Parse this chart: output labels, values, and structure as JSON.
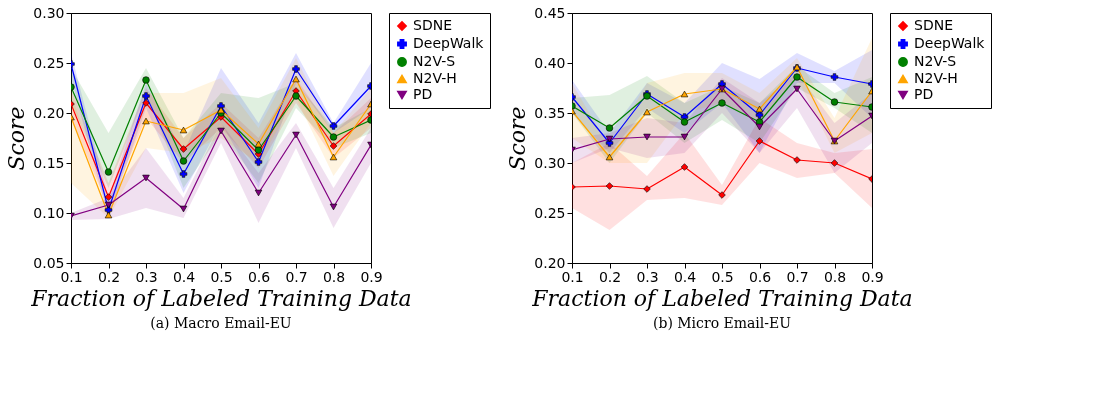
{
  "chart_data": [
    {
      "type": "line",
      "xlabel": "Fraction of Labeled Training Data",
      "ylabel": "Score",
      "annotations": [
        "(a) Macro Email-EU"
      ],
      "x": [
        0.1,
        0.2,
        0.3,
        0.4,
        0.5,
        0.6,
        0.7,
        0.8,
        0.9
      ],
      "xlim": [
        0.1,
        0.9
      ],
      "xticks": [
        0.1,
        0.2,
        0.3,
        0.4,
        0.5,
        0.6,
        0.7,
        0.8,
        0.9
      ],
      "ylim": [
        0.05,
        0.3
      ],
      "yticks": [
        0.05,
        {
          "value": 0.1,
          "label": "0.10"
        },
        0.15,
        {
          "value": 0.2,
          "label": "0.20"
        },
        0.25,
        {
          "value": 0.3,
          "label": "0.30"
        }
      ],
      "grid": false,
      "legend": "right",
      "line_style": "solid",
      "series": [
        {
          "name": "SDNE",
          "color": "#ff0000",
          "marker": "diamond",
          "values": [
            0.209,
            0.116,
            0.21,
            0.164,
            0.196,
            0.159,
            0.222,
            0.167,
            0.199
          ],
          "lower": [
            0.195,
            0.105,
            0.195,
            0.15,
            0.185,
            0.145,
            0.21,
            0.155,
            0.185
          ],
          "upper": [
            0.225,
            0.13,
            0.225,
            0.175,
            0.21,
            0.175,
            0.235,
            0.18,
            0.215
          ]
        },
        {
          "name": "DeepWalk",
          "color": "#0000ff",
          "marker": "cross",
          "values": [
            0.249,
            0.103,
            0.217,
            0.139,
            0.207,
            0.151,
            0.244,
            0.187,
            0.227
          ],
          "lower": [
            0.235,
            0.095,
            0.205,
            0.12,
            0.19,
            0.125,
            0.23,
            0.18,
            0.205
          ],
          "upper": [
            0.26,
            0.115,
            0.23,
            0.16,
            0.245,
            0.19,
            0.26,
            0.19,
            0.25
          ]
        },
        {
          "name": "N2V-S",
          "color": "#008000",
          "marker": "circle",
          "values": [
            0.226,
            0.141,
            0.233,
            0.152,
            0.2,
            0.163,
            0.217,
            0.176,
            0.193
          ],
          "lower": [
            0.21,
            0.125,
            0.22,
            0.125,
            0.18,
            0.13,
            0.205,
            0.165,
            0.18
          ],
          "upper": [
            0.245,
            0.18,
            0.245,
            0.175,
            0.22,
            0.215,
            0.23,
            0.185,
            0.205
          ]
        },
        {
          "name": "N2V-H",
          "color": "#ffa500",
          "marker": "triangle",
          "values": [
            0.196,
            0.098,
            0.192,
            0.183,
            0.203,
            0.169,
            0.234,
            0.156,
            0.209
          ],
          "lower": [
            0.13,
            0.095,
            0.165,
            0.16,
            0.175,
            0.15,
            0.215,
            0.137,
            0.19
          ],
          "upper": [
            0.22,
            0.105,
            0.22,
            0.22,
            0.235,
            0.185,
            0.255,
            0.18,
            0.225
          ]
        },
        {
          "name": "PD",
          "color": "#800080",
          "marker": "triangle-down",
          "values": [
            0.097,
            0.108,
            0.135,
            0.104,
            0.182,
            0.12,
            0.178,
            0.106,
            0.168
          ],
          "lower": [
            0.093,
            0.094,
            0.105,
            0.095,
            0.17,
            0.09,
            0.165,
            0.085,
            0.15
          ],
          "upper": [
            0.1,
            0.115,
            0.165,
            0.115,
            0.19,
            0.14,
            0.19,
            0.125,
            0.185
          ]
        }
      ]
    },
    {
      "type": "line",
      "xlabel": "Fraction of Labeled Training Data",
      "ylabel": "Score",
      "annotations": [
        "(b) Micro Email-EU"
      ],
      "x": [
        0.1,
        0.2,
        0.3,
        0.4,
        0.5,
        0.6,
        0.7,
        0.8,
        0.9
      ],
      "xlim": [
        0.1,
        0.9
      ],
      "xticks": [
        0.1,
        0.2,
        0.3,
        0.4,
        0.5,
        0.6,
        0.7,
        0.8,
        0.9
      ],
      "ylim": [
        0.2,
        0.45
      ],
      "yticks": [
        {
          "value": 0.2,
          "label": "0.20"
        },
        0.25,
        {
          "value": 0.3,
          "label": "0.30"
        },
        0.35,
        {
          "value": 0.4,
          "label": "0.40"
        },
        0.45
      ],
      "grid": false,
      "legend": "right",
      "line_style": "solid",
      "series": [
        {
          "name": "SDNE",
          "color": "#ff0000",
          "marker": "diamond",
          "values": [
            0.276,
            0.277,
            0.274,
            0.296,
            0.268,
            0.322,
            0.303,
            0.3,
            0.284
          ],
          "lower": [
            0.255,
            0.233,
            0.263,
            0.265,
            0.258,
            0.3,
            0.285,
            0.29,
            0.255
          ],
          "upper": [
            0.3,
            0.32,
            0.287,
            0.33,
            0.278,
            0.345,
            0.32,
            0.31,
            0.314
          ]
        },
        {
          "name": "DeepWalk",
          "color": "#0000ff",
          "marker": "cross",
          "values": [
            0.366,
            0.32,
            0.369,
            0.346,
            0.379,
            0.348,
            0.395,
            0.386,
            0.379
          ],
          "lower": [
            0.35,
            0.31,
            0.355,
            0.33,
            0.36,
            0.31,
            0.38,
            0.38,
            0.345
          ],
          "upper": [
            0.383,
            0.33,
            0.38,
            0.36,
            0.4,
            0.384,
            0.41,
            0.392,
            0.413
          ]
        },
        {
          "name": "N2V-S",
          "color": "#008000",
          "marker": "circle",
          "values": [
            0.357,
            0.335,
            0.367,
            0.341,
            0.36,
            0.341,
            0.386,
            0.361,
            0.356
          ],
          "lower": [
            0.35,
            0.3,
            0.35,
            0.32,
            0.343,
            0.32,
            0.375,
            0.355,
            0.33
          ],
          "upper": [
            0.365,
            0.368,
            0.387,
            0.36,
            0.377,
            0.36,
            0.397,
            0.37,
            0.386
          ]
        },
        {
          "name": "N2V-H",
          "color": "#ffa500",
          "marker": "triangle",
          "values": [
            0.352,
            0.306,
            0.351,
            0.369,
            0.374,
            0.354,
            0.396,
            0.322,
            0.372
          ],
          "lower": [
            0.325,
            0.3,
            0.3,
            0.35,
            0.36,
            0.34,
            0.385,
            0.31,
            0.33
          ],
          "upper": [
            0.38,
            0.315,
            0.38,
            0.39,
            0.39,
            0.37,
            0.405,
            0.345,
            0.425
          ]
        },
        {
          "name": "PD",
          "color": "#800080",
          "marker": "triangle-down",
          "values": [
            0.313,
            0.324,
            0.326,
            0.326,
            0.374,
            0.336,
            0.374,
            0.322,
            0.347
          ],
          "lower": [
            0.3,
            0.315,
            0.305,
            0.31,
            0.35,
            0.31,
            0.355,
            0.29,
            0.32
          ],
          "upper": [
            0.325,
            0.33,
            0.345,
            0.34,
            0.385,
            0.36,
            0.39,
            0.34,
            0.37
          ]
        }
      ]
    }
  ]
}
